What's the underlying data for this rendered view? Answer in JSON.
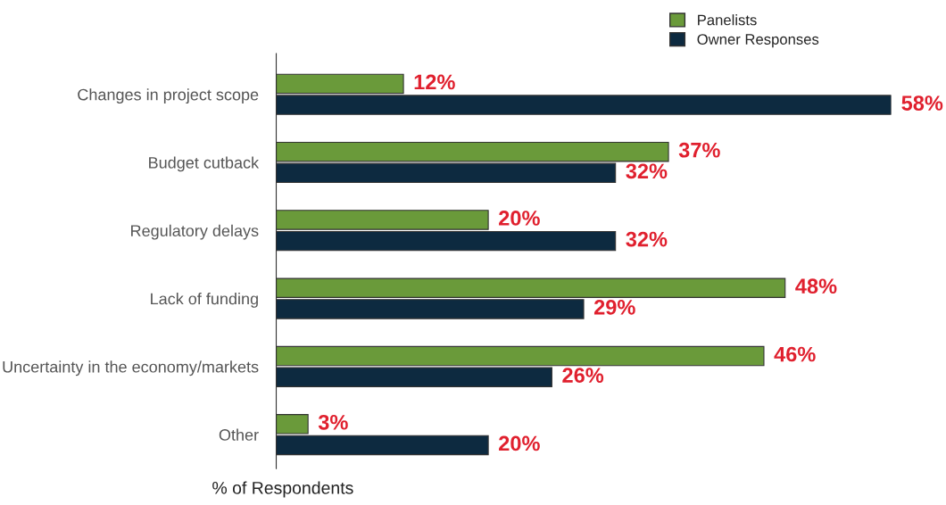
{
  "chart_data": {
    "type": "bar",
    "orientation": "horizontal",
    "xlabel": "% of Respondents",
    "categories": [
      "Changes in project scope",
      "Budget cutback",
      "Regulatory delays",
      "Lack of funding",
      "Uncertainty in the economy/markets",
      "Other"
    ],
    "series": [
      {
        "name": "Panelists",
        "color": "#6a9a3a",
        "values": [
          12,
          37,
          20,
          48,
          46,
          3
        ],
        "value_labels": [
          "12%",
          "37%",
          "20%",
          "48%",
          "46%",
          "3%"
        ]
      },
      {
        "name": "Owner Responses",
        "color": "#0d2a40",
        "values": [
          58,
          32,
          32,
          29,
          26,
          20
        ],
        "value_labels": [
          "58%",
          "32%",
          "32%",
          "29%",
          "26%",
          "20%"
        ]
      }
    ],
    "legend": "top right",
    "grid": false
  }
}
